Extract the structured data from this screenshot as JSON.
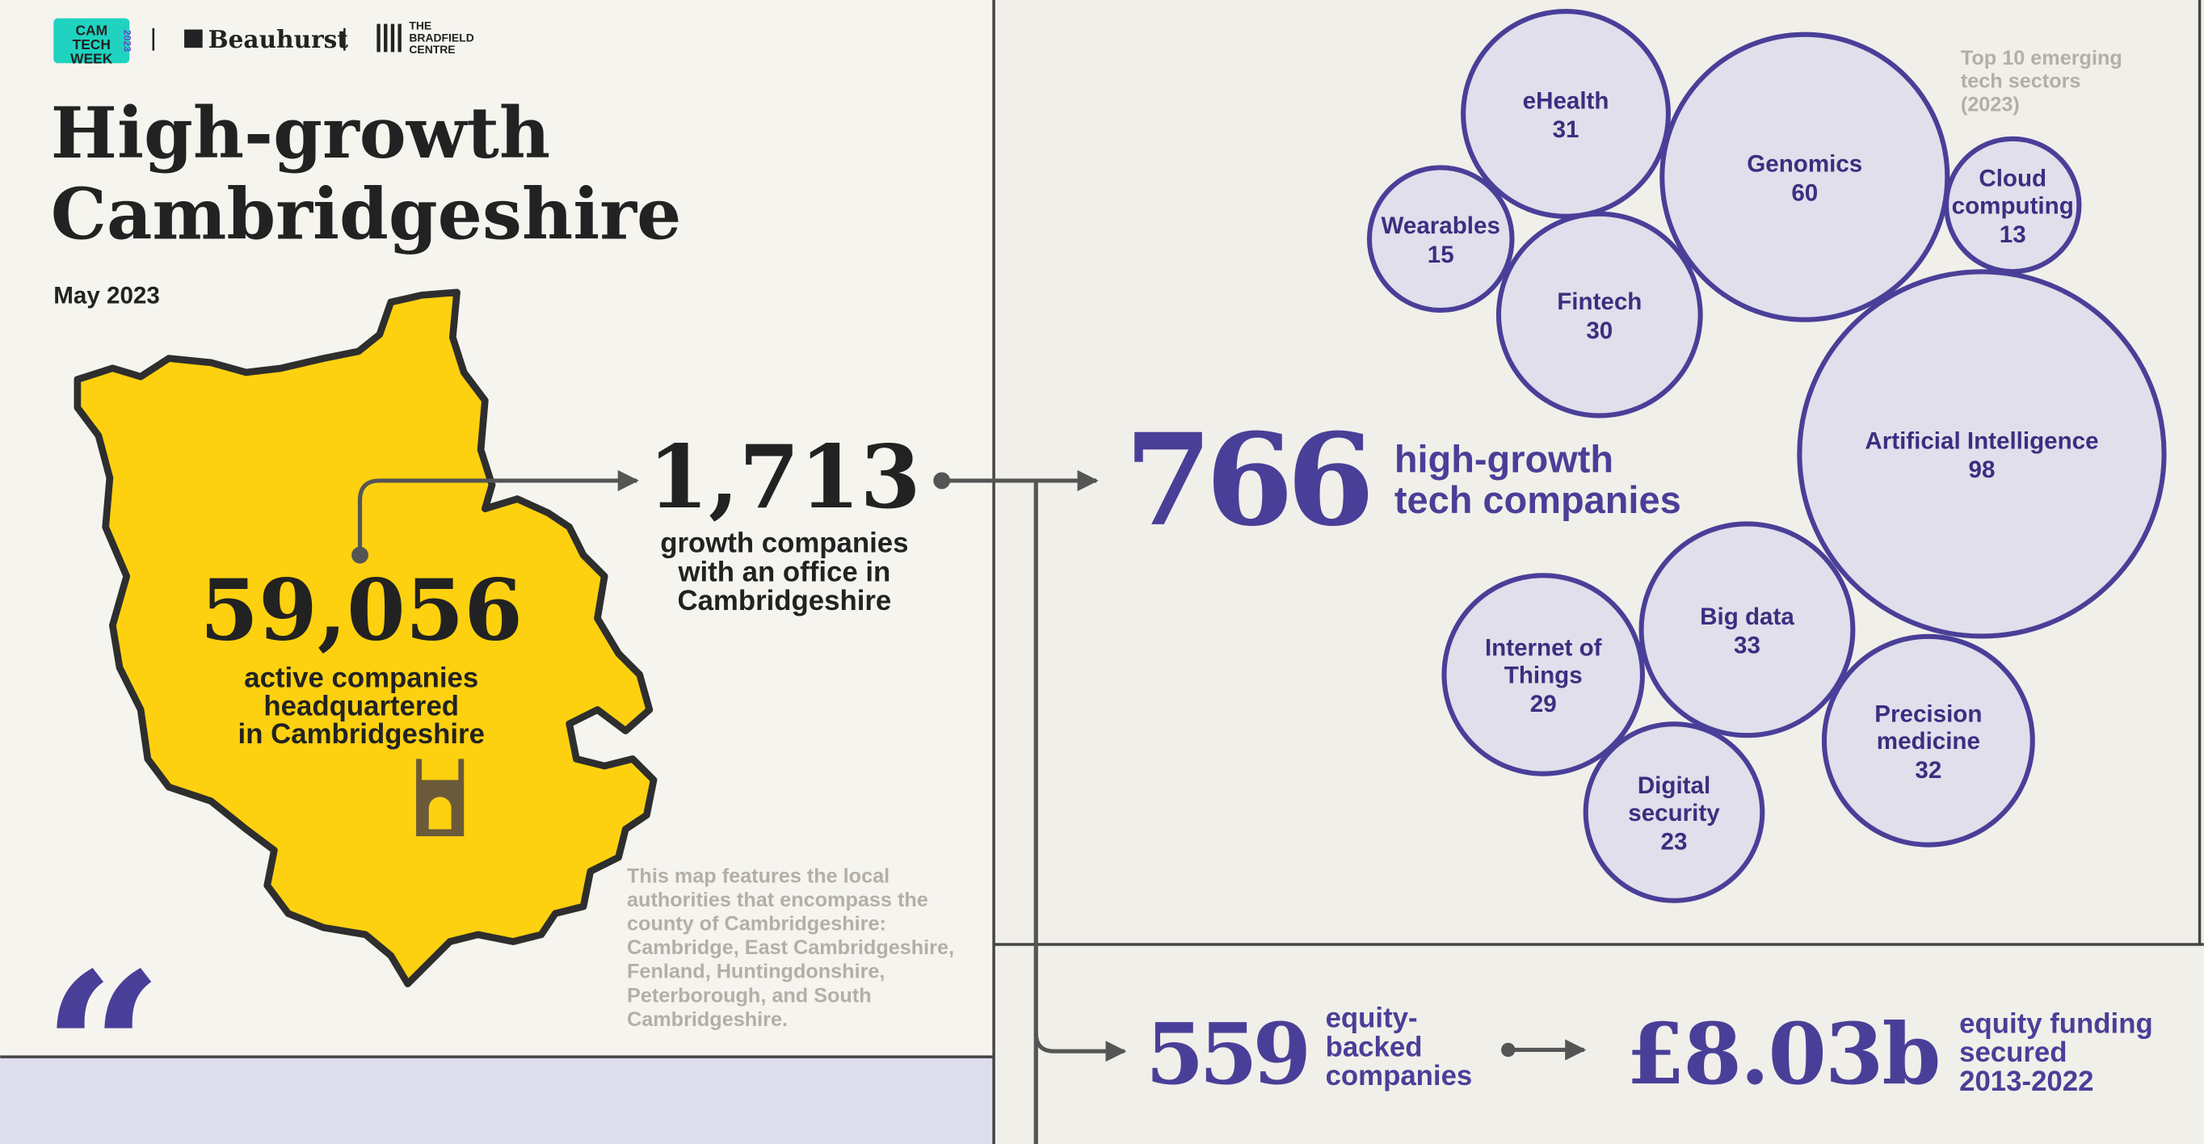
{
  "logos": {
    "camtechweek": [
      "CAM",
      "TECH",
      "WEEK"
    ],
    "year": "2023",
    "beauhurst": "Beauhurst",
    "bradfield": [
      "THE",
      "BRADFIELD",
      "CENTRE"
    ]
  },
  "header": {
    "title": [
      "High-growth",
      "Cambridgeshire"
    ],
    "date": "May 2023"
  },
  "stats": {
    "active": {
      "value": "59,056",
      "label": [
        "active companies",
        "headquartered",
        "in Cambridgeshire"
      ]
    },
    "growth": {
      "value": "1,713",
      "label": [
        "growth companies",
        "with an office in",
        "Cambridgeshire"
      ]
    },
    "high_growth": {
      "value": "766",
      "label": [
        "high-growth",
        "tech companies"
      ]
    },
    "equity_backed": {
      "value": "559",
      "label": [
        "equity-",
        "backed",
        "companies"
      ]
    },
    "funding": {
      "value": "£8.03b",
      "label": [
        "equity funding",
        "secured",
        "2013-2022"
      ]
    }
  },
  "note": [
    "This map features the local",
    "authorities that encompass the",
    "county of Cambridgeshire:",
    "Cambridge, East Cambridgeshire,",
    "Fenland, Huntingdonshire,",
    "Peterborough, and South",
    "Cambridgeshire."
  ],
  "sectors": {
    "caption": [
      "Top 10 emerging",
      "tech sectors",
      "(2023)"
    ],
    "items": [
      {
        "name": [
          "eHealth"
        ],
        "value": 31
      },
      {
        "name": [
          "Genomics"
        ],
        "value": 60
      },
      {
        "name": [
          "Cloud",
          "computing"
        ],
        "value": 13
      },
      {
        "name": [
          "Wearables"
        ],
        "value": 15
      },
      {
        "name": [
          "Fintech"
        ],
        "value": 30
      },
      {
        "name": [
          "Artificial Intelligence"
        ],
        "value": 98
      },
      {
        "name": [
          "Big data"
        ],
        "value": 33
      },
      {
        "name": [
          "Internet of",
          "Things"
        ],
        "value": 29
      },
      {
        "name": [
          "Precision",
          "medicine"
        ],
        "value": 32
      },
      {
        "name": [
          "Digital",
          "security"
        ],
        "value": 23
      }
    ]
  }
}
